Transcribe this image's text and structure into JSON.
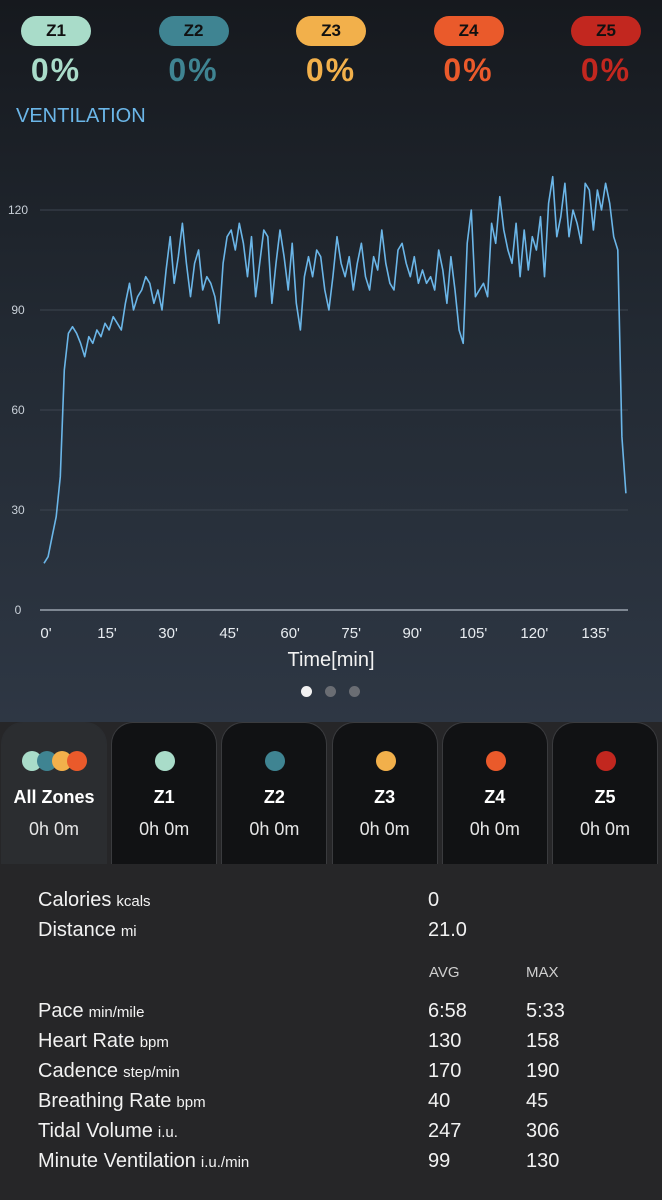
{
  "zones": [
    {
      "label": "Z1",
      "percent": "0%",
      "color": "#a9dcc9"
    },
    {
      "label": "Z2",
      "percent": "0%",
      "color": "#3f8492"
    },
    {
      "label": "Z3",
      "percent": "0%",
      "color": "#f2b04b"
    },
    {
      "label": "Z4",
      "percent": "0%",
      "color": "#ea5a2b"
    },
    {
      "label": "Z5",
      "percent": "0%",
      "color": "#c2271f"
    }
  ],
  "section_title": "VENTILATION",
  "chart_data": {
    "type": "line",
    "x_label": "Time[min]",
    "color": "#6bb6e8",
    "grid": true,
    "xlim": [
      0,
      144
    ],
    "ylim": [
      0,
      132
    ],
    "xticks": [
      {
        "value": 0,
        "label": "0'"
      },
      {
        "value": 15,
        "label": "15'"
      },
      {
        "value": 30,
        "label": "30'"
      },
      {
        "value": 45,
        "label": "45'"
      },
      {
        "value": 60,
        "label": "60'"
      },
      {
        "value": 75,
        "label": "75'"
      },
      {
        "value": 90,
        "label": "90'"
      },
      {
        "value": 105,
        "label": "105'"
      },
      {
        "value": 120,
        "label": "120'"
      },
      {
        "value": 135,
        "label": "135'"
      }
    ],
    "yticks": [
      0,
      30,
      60,
      90,
      120
    ],
    "x": [
      0,
      1,
      2,
      3,
      4,
      5,
      6,
      7,
      8,
      9,
      10,
      11,
      12,
      13,
      14,
      15,
      16,
      17,
      18,
      19,
      20,
      21,
      22,
      23,
      24,
      25,
      26,
      27,
      28,
      29,
      30,
      31,
      32,
      33,
      34,
      35,
      36,
      37,
      38,
      39,
      40,
      41,
      42,
      43,
      44,
      45,
      46,
      47,
      48,
      49,
      50,
      51,
      52,
      53,
      54,
      55,
      56,
      57,
      58,
      59,
      60,
      61,
      62,
      63,
      64,
      65,
      66,
      67,
      68,
      69,
      70,
      71,
      72,
      73,
      74,
      75,
      76,
      77,
      78,
      79,
      80,
      81,
      82,
      83,
      84,
      85,
      86,
      87,
      88,
      89,
      90,
      91,
      92,
      93,
      94,
      95,
      96,
      97,
      98,
      99,
      100,
      101,
      102,
      103,
      104,
      105,
      106,
      107,
      108,
      109,
      110,
      111,
      112,
      113,
      114,
      115,
      116,
      117,
      118,
      119,
      120,
      121,
      122,
      123,
      124,
      125,
      126,
      127,
      128,
      129,
      130,
      131,
      132,
      133,
      134,
      135,
      136,
      137,
      138,
      139,
      140,
      141,
      142,
      143
    ],
    "values": [
      14,
      16,
      22,
      28,
      40,
      72,
      83,
      85,
      83,
      80,
      76,
      82,
      80,
      84,
      82,
      86,
      84,
      88,
      86,
      84,
      92,
      98,
      90,
      94,
      96,
      100,
      98,
      92,
      96,
      90,
      102,
      112,
      98,
      106,
      116,
      104,
      94,
      104,
      108,
      96,
      100,
      98,
      94,
      86,
      104,
      112,
      114,
      108,
      116,
      110,
      100,
      112,
      94,
      104,
      114,
      112,
      92,
      104,
      114,
      106,
      96,
      110,
      92,
      84,
      100,
      106,
      100,
      108,
      106,
      96,
      90,
      100,
      112,
      104,
      100,
      106,
      96,
      104,
      110,
      100,
      96,
      106,
      102,
      114,
      104,
      98,
      96,
      108,
      110,
      104,
      100,
      106,
      98,
      102,
      98,
      100,
      96,
      108,
      102,
      92,
      106,
      96,
      84,
      80,
      110,
      120,
      94,
      96,
      98,
      94,
      116,
      110,
      124,
      114,
      108,
      104,
      116,
      100,
      114,
      102,
      112,
      108,
      118,
      100,
      122,
      130,
      112,
      118,
      128,
      112,
      120,
      116,
      110,
      128,
      126,
      114,
      126,
      120,
      128,
      122,
      112,
      108,
      52,
      35
    ]
  },
  "tabs": [
    {
      "label": "All Zones",
      "time": "0h 0m"
    },
    {
      "label": "Z1",
      "time": "0h 0m"
    },
    {
      "label": "Z2",
      "time": "0h 0m"
    },
    {
      "label": "Z3",
      "time": "0h 0m"
    },
    {
      "label": "Z4",
      "time": "0h 0m"
    },
    {
      "label": "Z5",
      "time": "0h 0m"
    }
  ],
  "stats": {
    "summary": [
      {
        "label": "Calories",
        "unit": "kcals",
        "value": "0"
      },
      {
        "label": "Distance",
        "unit": "mi",
        "value": "21.0"
      }
    ],
    "headers": [
      "AVG",
      "MAX"
    ],
    "rows": [
      {
        "label": "Pace",
        "unit": "min/mile",
        "avg": "6:58",
        "max": "5:33"
      },
      {
        "label": "Heart Rate",
        "unit": "bpm",
        "avg": "130",
        "max": "158"
      },
      {
        "label": "Cadence",
        "unit": "step/min",
        "avg": "170",
        "max": "190"
      },
      {
        "label": "Breathing Rate",
        "unit": "bpm",
        "avg": "40",
        "max": "45"
      },
      {
        "label": "Tidal Volume",
        "unit": "i.u.",
        "avg": "247",
        "max": "306"
      },
      {
        "label": "Minute Ventilation",
        "unit": "i.u./min",
        "avg": "99",
        "max": "130"
      }
    ]
  }
}
